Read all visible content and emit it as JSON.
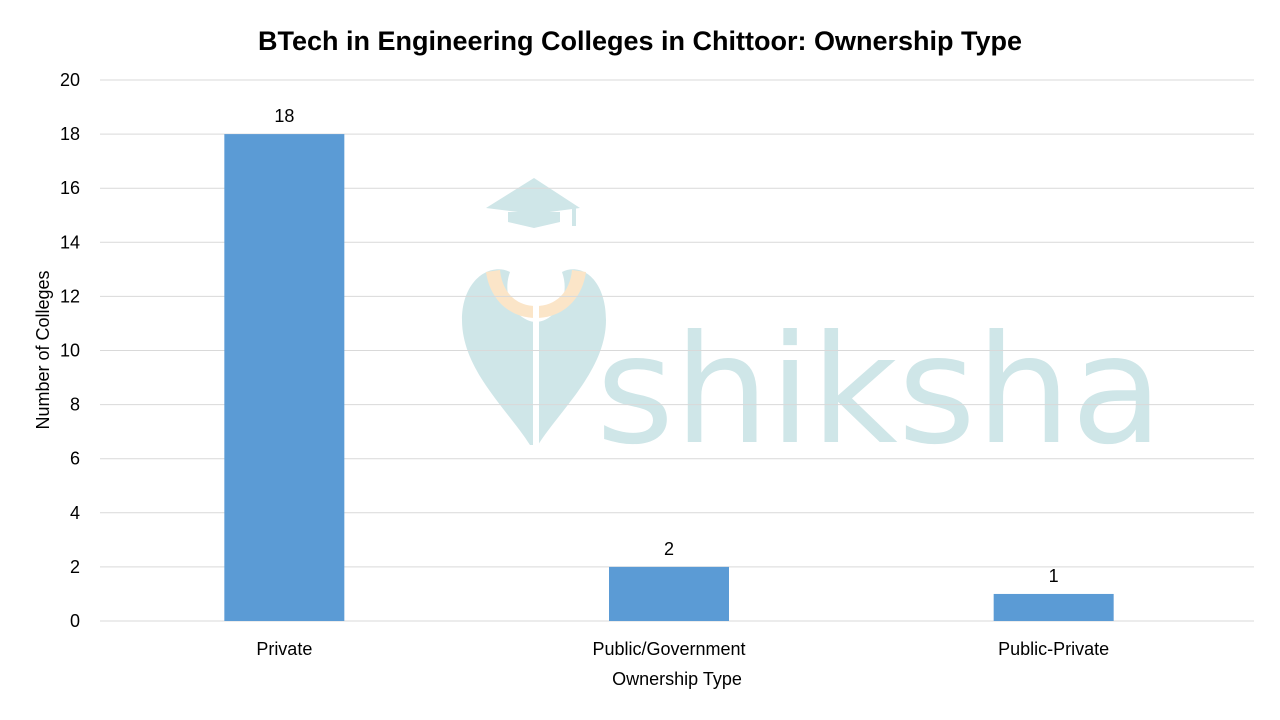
{
  "watermark": {
    "text": "shiksha",
    "icon": "graduation-cap-icon"
  },
  "colors": {
    "bar": "#5b9bd5",
    "grid": "#d9d9d9",
    "watermark": "#cfe6e8",
    "watermark_accent": "#fbe5c8"
  },
  "chart_data": {
    "type": "bar",
    "title": "BTech in Engineering Colleges in Chittoor: Ownership Type",
    "xlabel": "Ownership Type",
    "ylabel": "Number of Colleges",
    "categories": [
      "Private",
      "Public/Government",
      "Public-Private"
    ],
    "values": [
      18,
      2,
      1
    ],
    "ylim": [
      0,
      20
    ],
    "yticks": [
      0,
      2,
      4,
      6,
      8,
      10,
      12,
      14,
      16,
      18,
      20
    ],
    "grid": true,
    "legend": "none",
    "data_labels": true
  }
}
